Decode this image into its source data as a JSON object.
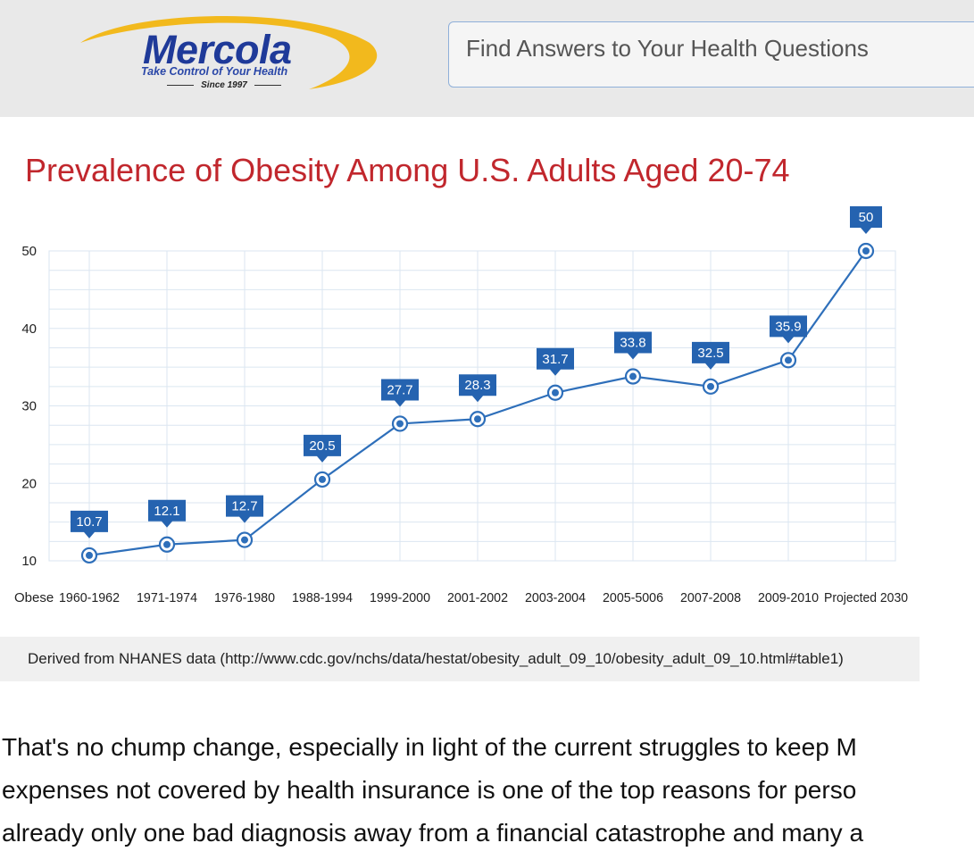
{
  "header": {
    "logo": {
      "name": "Mercola",
      "tagline": "Take Control of Your Health",
      "since": "Since 1997"
    },
    "search": {
      "placeholder": "Find Answers to Your Health Questions"
    }
  },
  "colors": {
    "header_bg": "#e9e9e9",
    "title_red": "#c1272d",
    "line_blue": "#2e6fba",
    "label_blue": "#2563b0",
    "logo_blue": "#1f3a99",
    "logo_swoosh": "#f2b91d"
  },
  "chart_data": {
    "type": "line",
    "title": "Prevalence of Obesity Among U.S. Adults Aged 20-74",
    "xlabel": "",
    "ylabel": "",
    "legend": "none",
    "series_label": "Obese",
    "categories": [
      "1960-1962",
      "1971-1974",
      "1976-1980",
      "1988-1994",
      "1999-2000",
      "2001-2002",
      "2003-2004",
      "2005-5006",
      "2007-2008",
      "2009-2010",
      "Projected 2030"
    ],
    "values": [
      10.7,
      12.1,
      12.7,
      20.5,
      27.7,
      28.3,
      31.7,
      33.8,
      32.5,
      35.9,
      50
    ],
    "point_labels": [
      "10.7",
      "12.1",
      "12.7",
      "20.5",
      "27.7",
      "28.3",
      "31.7",
      "33.8",
      "32.5",
      "35.9",
      "50"
    ],
    "yticks": [
      "10",
      "20",
      "30",
      "40",
      "50"
    ],
    "ylim": [
      10,
      50
    ],
    "grid": true
  },
  "source": {
    "text": "Derived from NHANES data (http://www.cdc.gov/nchs/data/hestat/obesity_adult_09_10/obesity_adult_09_10.html#table1)"
  },
  "article": {
    "lines": [
      "That's no chump change, especially in light of the current struggles to keep M",
      "expenses not covered by health insurance is one of the top reasons for perso",
      "already only one bad diagnosis away from a financial catastrophe and many a"
    ]
  }
}
